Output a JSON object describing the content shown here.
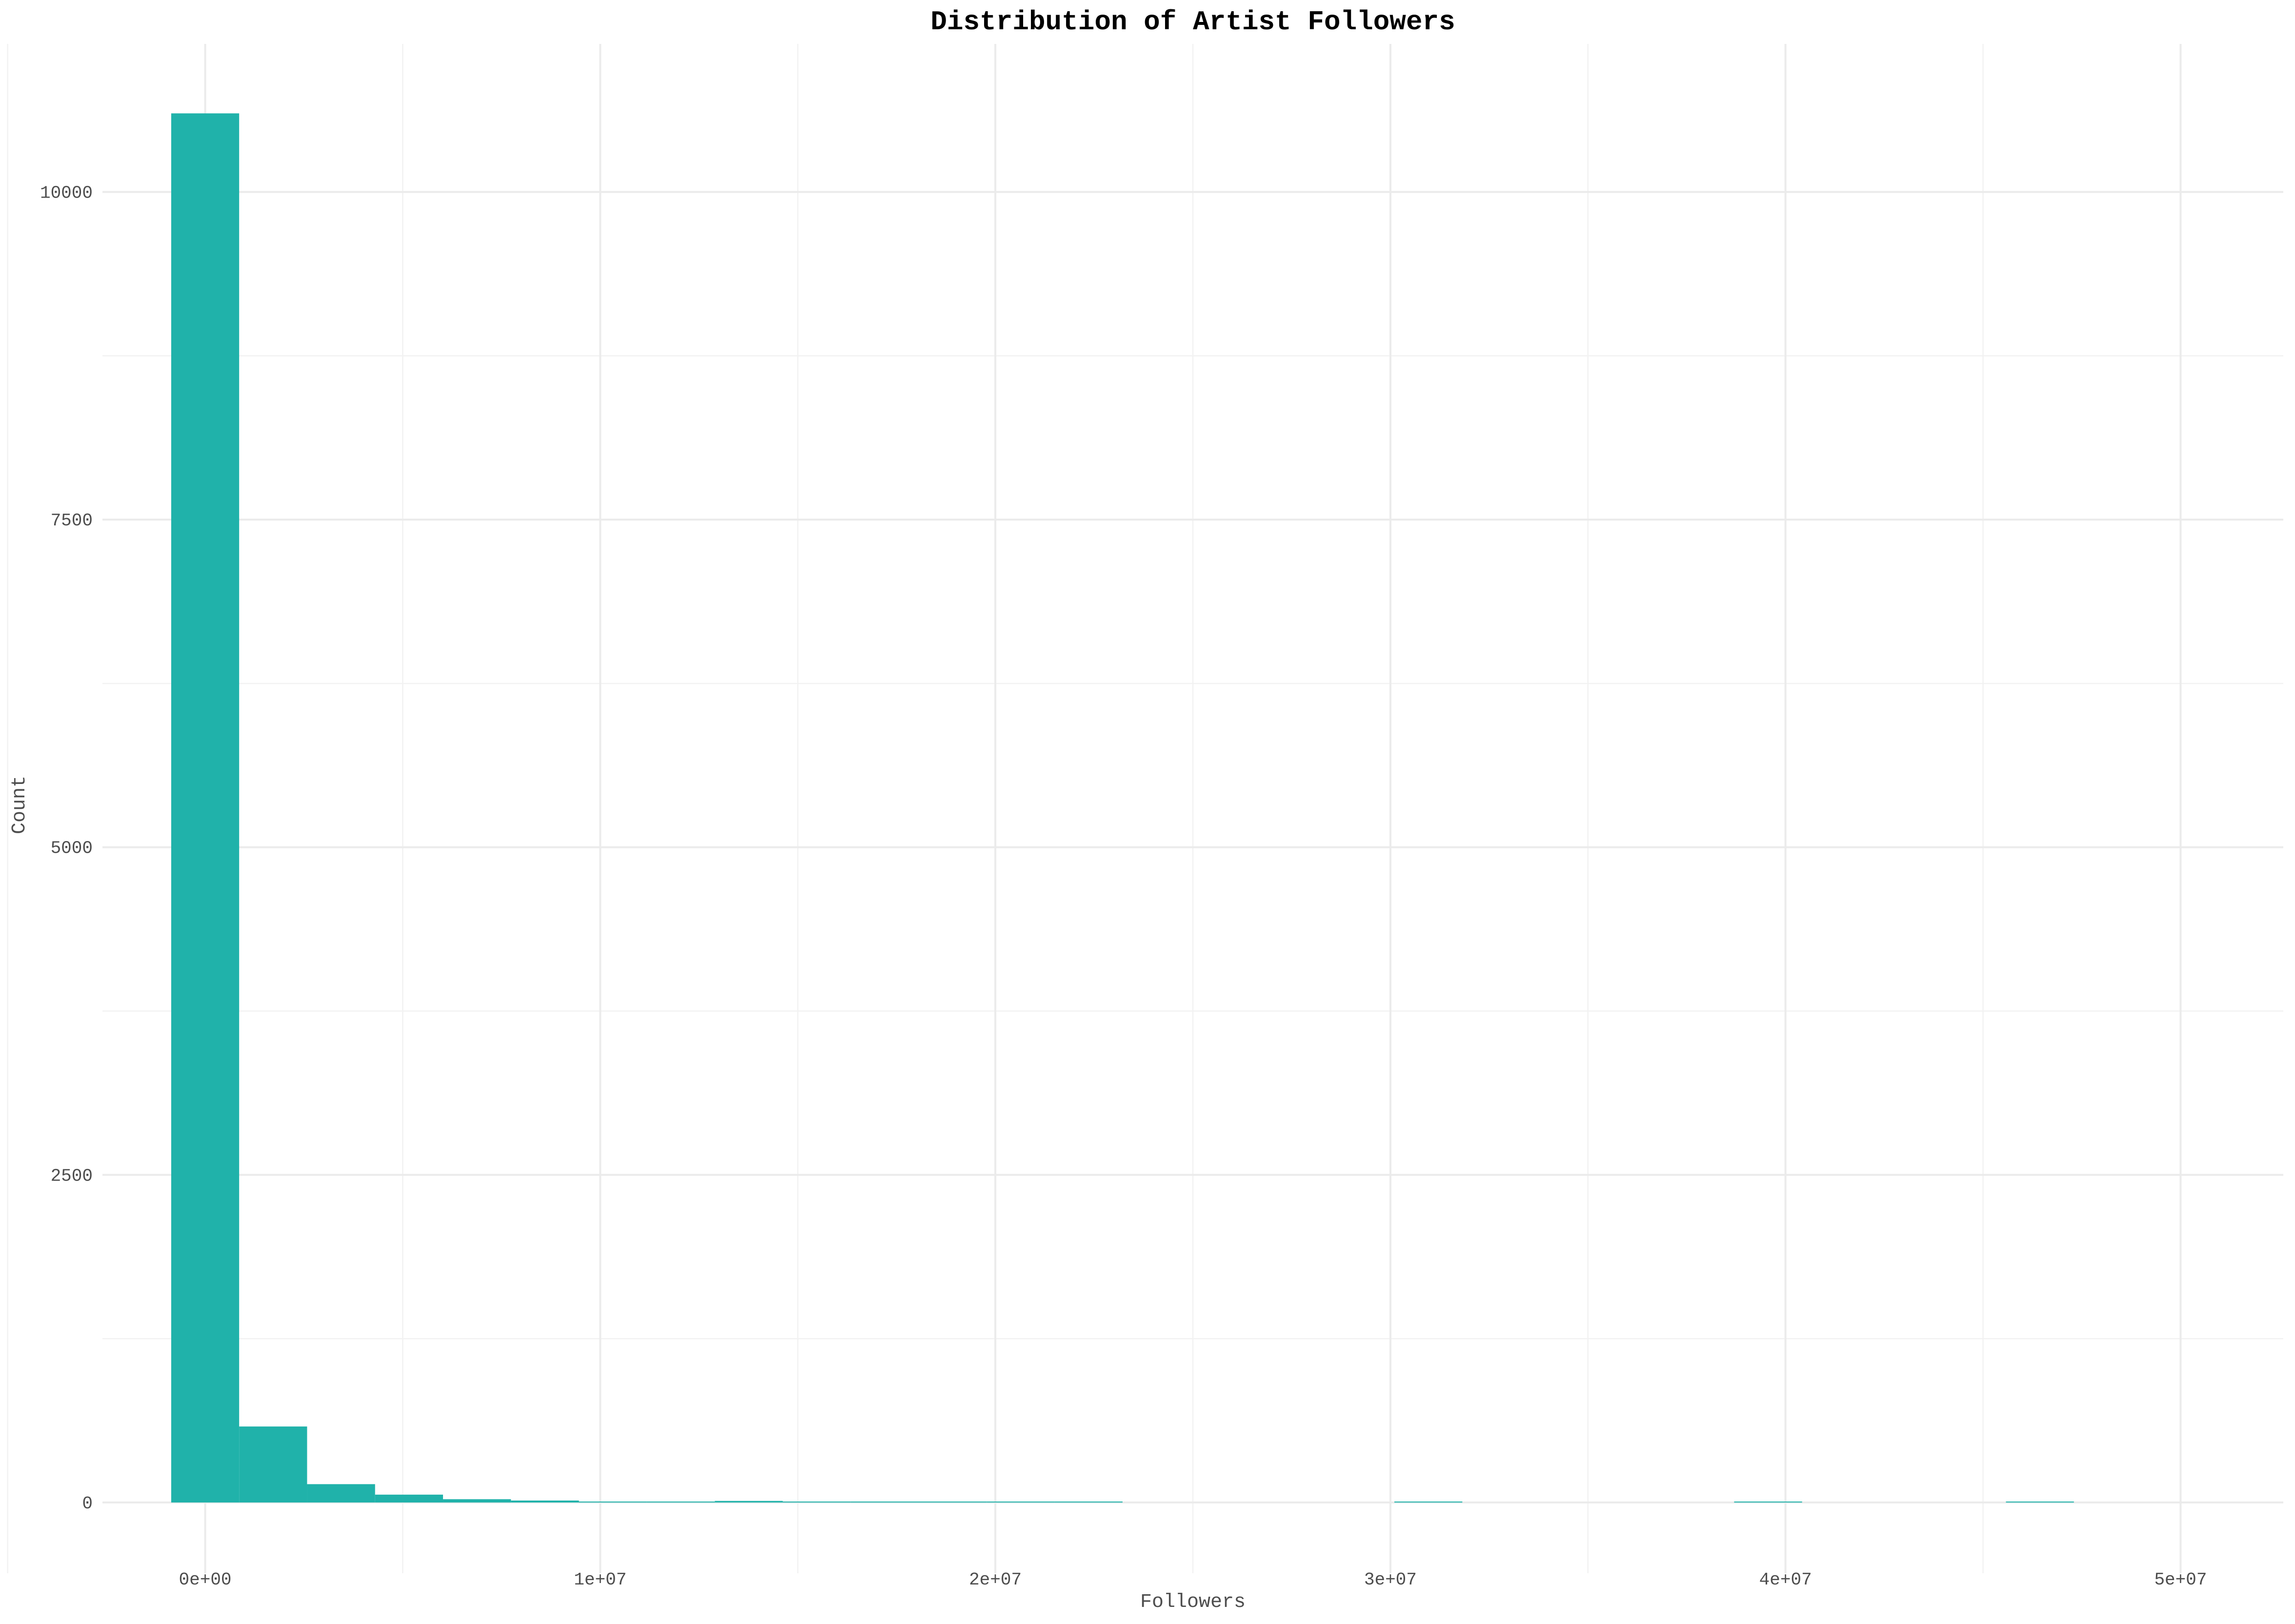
{
  "chart_data": {
    "type": "bar",
    "title": "Distribution of Artist Followers",
    "xlabel": "Followers",
    "ylabel": "Count",
    "bar_color": "#20B2AA",
    "grid": true,
    "xlim": [
      -2600000,
      52600000
    ],
    "ylim": [
      -540,
      11130
    ],
    "x_ticks": [
      {
        "value": 0,
        "label": "0e+00"
      },
      {
        "value": 10000000,
        "label": "1e+07"
      },
      {
        "value": 20000000,
        "label": "2e+07"
      },
      {
        "value": 30000000,
        "label": "3e+07"
      },
      {
        "value": 40000000,
        "label": "4e+07"
      },
      {
        "value": 50000000,
        "label": "5e+07"
      }
    ],
    "x_minor_ticks": [
      -5000000,
      5000000,
      15000000,
      25000000,
      35000000,
      45000000
    ],
    "y_ticks": [
      {
        "value": 0,
        "label": "0"
      },
      {
        "value": 2500,
        "label": "2500"
      },
      {
        "value": 5000,
        "label": "5000"
      },
      {
        "value": 7500,
        "label": "7500"
      },
      {
        "value": 10000,
        "label": "10000"
      }
    ],
    "y_minor_ticks": [
      1250,
      3750,
      6250,
      8750
    ],
    "bin_width": 1720000,
    "bin_start": -860000,
    "counts": [
      10600,
      580,
      140,
      60,
      25,
      15,
      5,
      4,
      12,
      4,
      2,
      2,
      1,
      1,
      0,
      0,
      0,
      0,
      1,
      0,
      0,
      0,
      0,
      1,
      0,
      0,
      0,
      1,
      0,
      0,
      0,
      0,
      0,
      0,
      0,
      0,
      0,
      0,
      0,
      1
    ]
  }
}
